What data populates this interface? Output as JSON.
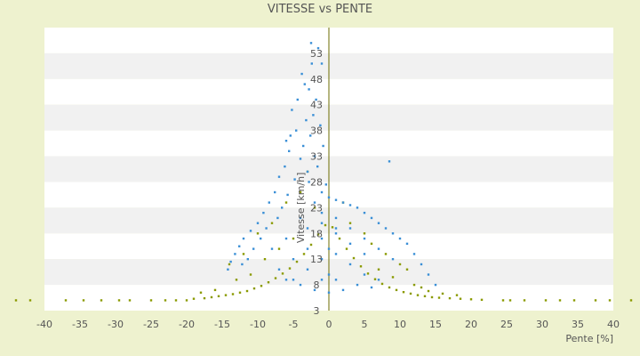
{
  "chart_data": {
    "type": "scatter",
    "title": "VITESSE vs PENTE",
    "xlabel": "Pente [%]",
    "ylabel": "Vitesse [km/h]",
    "xlim": [
      -40,
      40
    ],
    "ylim": [
      3,
      58
    ],
    "grid": "horizontal bands",
    "x_ticks": [
      "-40",
      "-35",
      "-30",
      "-25",
      "-20",
      "-15",
      "-10",
      "-5",
      "0",
      "5",
      "10",
      "15",
      "20",
      "25",
      "30",
      "35",
      "40"
    ],
    "y_ticks": [
      "3",
      "8",
      "13",
      "18",
      "23",
      "28",
      "33",
      "38",
      "43",
      "48",
      "53"
    ],
    "series": [
      {
        "color": "#8a9a00",
        "points": [
          [
            -44,
            5
          ],
          [
            -42,
            5
          ],
          [
            -37,
            5
          ],
          [
            -34.5,
            5
          ],
          [
            -32,
            5
          ],
          [
            -29.5,
            5
          ],
          [
            -28,
            5
          ],
          [
            -25,
            5
          ],
          [
            -23,
            5
          ],
          [
            -21.5,
            5
          ],
          [
            -20,
            5
          ],
          [
            -19,
            5.3
          ],
          [
            -17.5,
            5.4
          ],
          [
            -16.5,
            5.6
          ],
          [
            -15.5,
            5.8
          ],
          [
            -14.5,
            6
          ],
          [
            -13.5,
            6.2
          ],
          [
            -12.5,
            6.5
          ],
          [
            -11.5,
            6.8
          ],
          [
            -10.5,
            7.3
          ],
          [
            -9.5,
            7.8
          ],
          [
            -8.5,
            8.5
          ],
          [
            -7.5,
            9.3
          ],
          [
            -6.5,
            10.2
          ],
          [
            -5.5,
            11.2
          ],
          [
            -4.5,
            12.5
          ],
          [
            -3.5,
            14
          ],
          [
            -2.5,
            15.8
          ],
          [
            -1.5,
            17.8
          ],
          [
            -0.5,
            19.6
          ],
          [
            0.5,
            19.2
          ],
          [
            1.5,
            17
          ],
          [
            2.5,
            15
          ],
          [
            3.5,
            13.2
          ],
          [
            4.5,
            11.6
          ],
          [
            5.5,
            10.2
          ],
          [
            6.5,
            9.1
          ],
          [
            7.5,
            8.2
          ],
          [
            8.5,
            7.5
          ],
          [
            9.5,
            7
          ],
          [
            10.5,
            6.6
          ],
          [
            11.5,
            6.3
          ],
          [
            12.5,
            6
          ],
          [
            13.5,
            5.8
          ],
          [
            14.5,
            5.6
          ],
          [
            15.5,
            5.5
          ],
          [
            17,
            5.4
          ],
          [
            18.5,
            5.3
          ],
          [
            20,
            5.2
          ],
          [
            21.5,
            5.1
          ],
          [
            24.5,
            5
          ],
          [
            25.5,
            5
          ],
          [
            27.5,
            5
          ],
          [
            30.5,
            5
          ],
          [
            32.5,
            5
          ],
          [
            34.5,
            5
          ],
          [
            37.5,
            5
          ],
          [
            39.5,
            5
          ],
          [
            42.5,
            5
          ],
          [
            -14,
            12
          ],
          [
            -12,
            14
          ],
          [
            -10,
            18
          ],
          [
            -8,
            20
          ],
          [
            -6,
            24
          ],
          [
            -4,
            26
          ],
          [
            -3,
            30
          ],
          [
            -2,
            23
          ],
          [
            2,
            24
          ],
          [
            3,
            20
          ],
          [
            5,
            18
          ],
          [
            6,
            16
          ],
          [
            8,
            14
          ],
          [
            10,
            12
          ],
          [
            11,
            11
          ],
          [
            -13,
            9
          ],
          [
            -11,
            10
          ],
          [
            -9,
            13
          ],
          [
            -7,
            15
          ],
          [
            -5,
            17
          ],
          [
            7,
            11
          ],
          [
            9,
            9.5
          ],
          [
            12,
            8
          ],
          [
            13,
            7.5
          ],
          [
            14,
            6.8
          ],
          [
            16,
            6.3
          ],
          [
            18,
            6
          ],
          [
            -16,
            7
          ],
          [
            -18,
            6.5
          ]
        ]
      },
      {
        "color": "#3a8fd6",
        "points": [
          [
            -2.5,
            55
          ],
          [
            -1.5,
            54
          ],
          [
            -1,
            51
          ],
          [
            -2.4,
            51
          ],
          [
            -3.8,
            49
          ],
          [
            -3.4,
            47
          ],
          [
            -2.8,
            46
          ],
          [
            -1.8,
            44
          ],
          [
            -4.4,
            44
          ],
          [
            -2.2,
            41
          ],
          [
            -5.2,
            42
          ],
          [
            -3.2,
            40
          ],
          [
            -4.6,
            38
          ],
          [
            -1.2,
            39
          ],
          [
            -5.4,
            37
          ],
          [
            -2.6,
            37
          ],
          [
            -6,
            36
          ],
          [
            -3.6,
            35
          ],
          [
            -0.8,
            35
          ],
          [
            -5.6,
            34
          ],
          [
            -2,
            33
          ],
          [
            -4,
            32.5
          ],
          [
            8.5,
            32
          ],
          [
            -6.2,
            31
          ],
          [
            -1.6,
            31
          ],
          [
            -3,
            30
          ],
          [
            -7,
            29
          ],
          [
            -4.8,
            28.5
          ],
          [
            -2.8,
            28
          ],
          [
            -0.4,
            27.5
          ],
          [
            -7.6,
            26
          ],
          [
            -5.8,
            25.5
          ],
          [
            -8.4,
            24
          ],
          [
            -6.6,
            23
          ],
          [
            -9.2,
            22
          ],
          [
            -10,
            20
          ],
          [
            -11,
            18.5
          ],
          [
            -12,
            17
          ],
          [
            -12.6,
            15.5
          ],
          [
            -13.2,
            14
          ],
          [
            -13.8,
            12.5
          ],
          [
            -14.2,
            11
          ],
          [
            -9.6,
            17
          ],
          [
            -8.8,
            19
          ],
          [
            -7.2,
            21
          ],
          [
            -10.6,
            15
          ],
          [
            -11.4,
            13
          ],
          [
            -12.2,
            12
          ],
          [
            -8,
            15
          ],
          [
            -6,
            17
          ],
          [
            -4,
            21
          ],
          [
            -2,
            24
          ],
          [
            -1,
            26
          ],
          [
            0,
            25
          ],
          [
            1,
            24.5
          ],
          [
            2,
            24
          ],
          [
            3,
            23.5
          ],
          [
            4,
            23
          ],
          [
            5,
            22
          ],
          [
            6,
            21
          ],
          [
            7,
            20
          ],
          [
            8,
            19
          ],
          [
            9,
            18
          ],
          [
            10,
            17
          ],
          [
            11,
            16
          ],
          [
            12,
            14
          ],
          [
            13,
            12
          ],
          [
            14,
            10
          ],
          [
            15,
            8
          ],
          [
            -3,
            19
          ],
          [
            -1,
            20
          ],
          [
            1,
            21
          ],
          [
            3,
            19
          ],
          [
            5,
            17
          ],
          [
            7,
            15
          ],
          [
            9,
            13
          ],
          [
            -5,
            13
          ],
          [
            -3,
            15
          ],
          [
            -1,
            17
          ],
          [
            1,
            18
          ],
          [
            3,
            16
          ],
          [
            5,
            14
          ],
          [
            -7,
            11
          ],
          [
            -5,
            9
          ],
          [
            -3,
            11
          ],
          [
            -1,
            13
          ],
          [
            1,
            14
          ],
          [
            3,
            12
          ],
          [
            5,
            10
          ],
          [
            7,
            9
          ],
          [
            -2,
            7
          ],
          [
            0,
            6.5
          ],
          [
            2,
            7
          ],
          [
            -4,
            8
          ],
          [
            4,
            8
          ],
          [
            -6,
            9
          ],
          [
            6,
            7.5
          ],
          [
            0,
            10
          ],
          [
            -1,
            9
          ],
          [
            1,
            9
          ],
          [
            0,
            15
          ],
          [
            -1,
            22
          ],
          [
            1,
            19
          ]
        ]
      }
    ]
  }
}
